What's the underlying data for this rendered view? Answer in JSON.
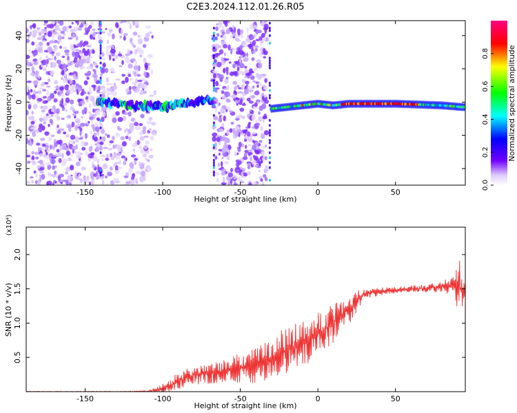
{
  "title": "C2E3.2024.112.01.26.R05",
  "chart_data": [
    {
      "type": "heatmap",
      "xlabel": "Height of straight line (km)",
      "ylabel": "Frequency (Hz)",
      "xlim": [
        -188,
        95
      ],
      "ylim": [
        -50,
        49
      ],
      "xticks": [
        -150,
        -100,
        -50,
        0,
        50
      ],
      "xtick_labels": [
        "-150",
        "-100",
        "-50",
        "0",
        "50"
      ],
      "yticks": [
        -40,
        -20,
        0,
        20,
        40
      ],
      "ytick_labels": [
        "-40",
        "-20",
        "0",
        "20",
        "40"
      ],
      "colorbar": {
        "label": "Normalized spectral amplitude",
        "range": [
          0,
          1
        ],
        "ticks": [
          0.0,
          0.2,
          0.4,
          0.6,
          0.8
        ],
        "tick_labels": [
          "0.0",
          "0.2",
          "0.4",
          "0.6",
          "0.8"
        ],
        "colors": [
          "#ffffff",
          "#7000ff",
          "#0000ff",
          "#00ffff",
          "#00ff00",
          "#ffff00",
          "#ff0000",
          "#ff0080"
        ]
      },
      "ridge": {
        "description_points_x": [
          -140,
          -120,
          -100,
          -80,
          -70,
          -30,
          -20,
          -10,
          0,
          10,
          20,
          50,
          80,
          93
        ],
        "frequency_hz": [
          0,
          -2,
          -3,
          0,
          1,
          -4,
          -3,
          -2,
          -1,
          -2,
          -1,
          -1,
          -2,
          -3
        ]
      }
    },
    {
      "type": "line",
      "xlabel": "Height of straight line (km)",
      "ylabel": "SNR (10 * v/v)",
      "yscale_label": "(x10⁴)",
      "xlim": [
        -188,
        95
      ],
      "ylim": [
        0,
        24000
      ],
      "xticks": [
        -150,
        -100,
        -50,
        0,
        50
      ],
      "xtick_labels": [
        "-150",
        "-100",
        "-50",
        "0",
        "50"
      ],
      "yticks": [
        5000,
        10000,
        15000,
        20000
      ],
      "ytick_labels": [
        "0.5",
        "1.0",
        "1.5",
        "2.0"
      ],
      "color": "#ee3333",
      "envelope": {
        "x": [
          -188,
          -150,
          -120,
          -110,
          -100,
          -90,
          -80,
          -70,
          -60,
          -50,
          -40,
          -30,
          -20,
          -10,
          0,
          10,
          20,
          30,
          40,
          50,
          60,
          70,
          80,
          88,
          92,
          95
        ],
        "mean": [
          0,
          0,
          0,
          50,
          500,
          1500,
          2500,
          2600,
          3000,
          3500,
          3800,
          5000,
          6000,
          7000,
          8500,
          10000,
          12000,
          14300,
          14600,
          14800,
          15000,
          15100,
          15300,
          15500,
          15000,
          15000
        ],
        "amplitude": [
          60,
          60,
          80,
          150,
          700,
          1300,
          1500,
          1500,
          1700,
          2200,
          2600,
          3200,
          3500,
          3800,
          3000,
          3000,
          2300,
          800,
          600,
          500,
          500,
          600,
          800,
          1500,
          6000,
          1000
        ]
      }
    }
  ]
}
